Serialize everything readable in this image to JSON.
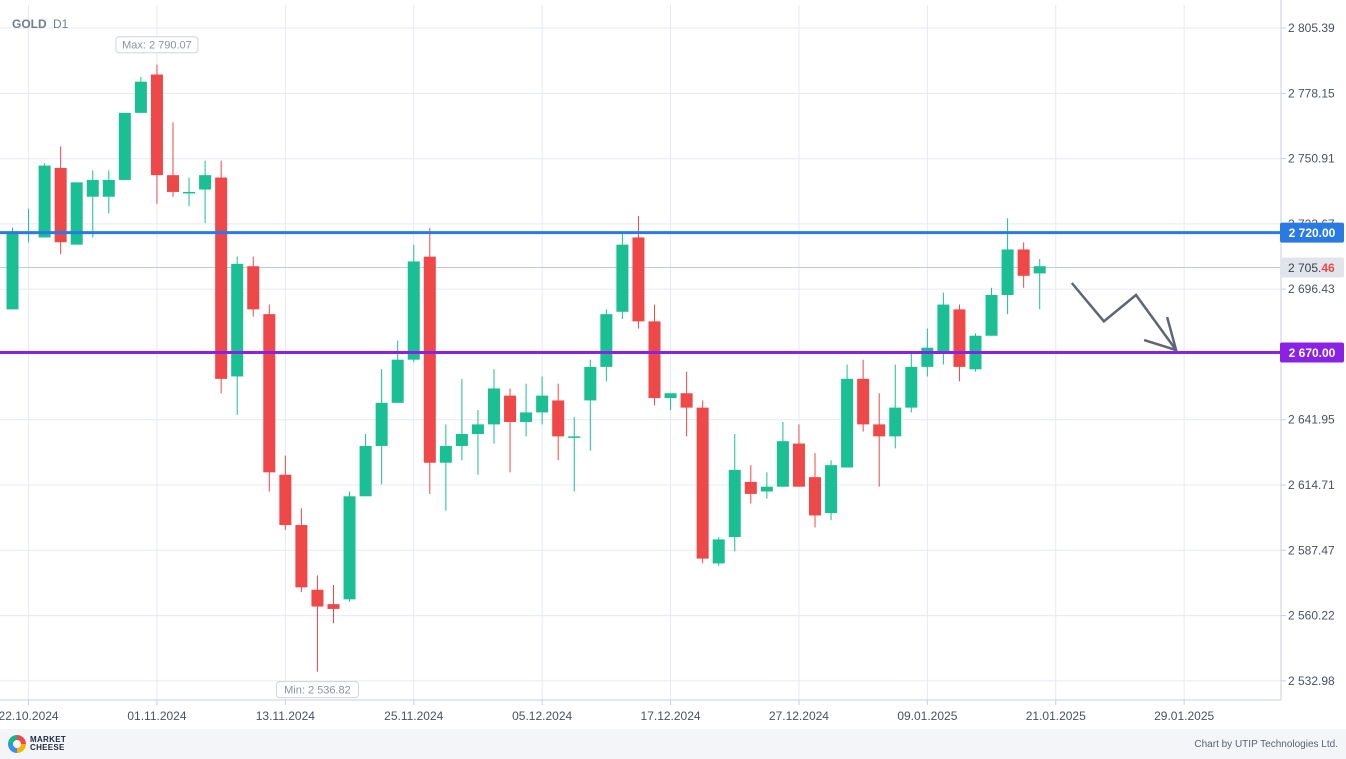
{
  "header": {
    "symbol": "GOLD",
    "timeframe": "D1"
  },
  "footer": {
    "logo_line1": "MARKET",
    "logo_line2": "CHEESE",
    "credit": "Chart by UTIP Technologies Ltd."
  },
  "colors": {
    "bull": "#1bbf94",
    "bear": "#ef4848",
    "resistance": "#2a7ae4",
    "support": "#8a22e6",
    "arrow": "#5d6673",
    "grid": "#e6e9f4"
  },
  "chart_data": {
    "type": "candlestick",
    "symbol": "GOLD",
    "timeframe": "D1",
    "ylim": [
      2525,
      2815
    ],
    "y_ticks": [
      "2 805.39",
      "2 778.15",
      "2 750.91",
      "2 723.67",
      "2 696.43",
      "2 641.95",
      "2 614.71",
      "2 587.47",
      "2 560.22",
      "2 532.98"
    ],
    "x_ticks": [
      {
        "index": 1,
        "label": "22.10.2024"
      },
      {
        "index": 9,
        "label": "01.11.2024"
      },
      {
        "index": 17,
        "label": "13.11.2024"
      },
      {
        "index": 25,
        "label": "25.11.2024"
      },
      {
        "index": 33,
        "label": "05.12.2024"
      },
      {
        "index": 41,
        "label": "17.12.2024"
      },
      {
        "index": 49,
        "label": "27.12.2024"
      },
      {
        "index": 57,
        "label": "09.01.2025"
      },
      {
        "index": 65,
        "label": "21.01.2025"
      },
      {
        "index": 73,
        "label": "29.01.2025"
      }
    ],
    "candles": [
      {
        "o": 2688.0,
        "h": 2722.0,
        "l": 2688.0,
        "c": 2720.0
      },
      {
        "o": 2720.0,
        "h": 2730.0,
        "l": 2716.0,
        "c": 2720.0
      },
      {
        "o": 2718.0,
        "h": 2749.0,
        "l": 2718.0,
        "c": 2748.0
      },
      {
        "o": 2747.0,
        "h": 2756.0,
        "l": 2711.0,
        "c": 2716.0
      },
      {
        "o": 2715.0,
        "h": 2740.0,
        "l": 2715.0,
        "c": 2741.0
      },
      {
        "o": 2735.0,
        "h": 2746.0,
        "l": 2718.0,
        "c": 2742.0
      },
      {
        "o": 2735.0,
        "h": 2746.0,
        "l": 2728.0,
        "c": 2742.0
      },
      {
        "o": 2742.0,
        "h": 2770.0,
        "l": 2742.0,
        "c": 2770.0
      },
      {
        "o": 2770.0,
        "h": 2785.0,
        "l": 2770.0,
        "c": 2783.0
      },
      {
        "o": 2786.0,
        "h": 2790.07,
        "l": 2732.0,
        "c": 2744.0
      },
      {
        "o": 2744.0,
        "h": 2766.0,
        "l": 2735.0,
        "c": 2737.0
      },
      {
        "o": 2737.0,
        "h": 2743.0,
        "l": 2731.0,
        "c": 2737.0
      },
      {
        "o": 2738.0,
        "h": 2750.0,
        "l": 2724.0,
        "c": 2744.0
      },
      {
        "o": 2743.0,
        "h": 2750.0,
        "l": 2653.0,
        "c": 2659.0
      },
      {
        "o": 2660.0,
        "h": 2710.0,
        "l": 2644.0,
        "c": 2707.0
      },
      {
        "o": 2706.0,
        "h": 2710.0,
        "l": 2685.0,
        "c": 2688.0
      },
      {
        "o": 2686.0,
        "h": 2690.0,
        "l": 2612.0,
        "c": 2620.0
      },
      {
        "o": 2619.0,
        "h": 2627.0,
        "l": 2596.0,
        "c": 2598.0
      },
      {
        "o": 2598.0,
        "h": 2605.0,
        "l": 2570.0,
        "c": 2572.0
      },
      {
        "o": 2571.0,
        "h": 2577.0,
        "l": 2536.82,
        "c": 2564.0
      },
      {
        "o": 2565.0,
        "h": 2573.0,
        "l": 2557.0,
        "c": 2563.0
      },
      {
        "o": 2567.0,
        "h": 2612.0,
        "l": 2566.0,
        "c": 2610.0
      },
      {
        "o": 2610.0,
        "h": 2636.0,
        "l": 2610.0,
        "c": 2631.0
      },
      {
        "o": 2631.0,
        "h": 2663.0,
        "l": 2615.0,
        "c": 2649.0
      },
      {
        "o": 2649.0,
        "h": 2675.0,
        "l": 2649.0,
        "c": 2667.0
      },
      {
        "o": 2667.0,
        "h": 2715.0,
        "l": 2666.0,
        "c": 2708.0
      },
      {
        "o": 2710.0,
        "h": 2722.0,
        "l": 2611.0,
        "c": 2624.0
      },
      {
        "o": 2624.0,
        "h": 2640.0,
        "l": 2604.0,
        "c": 2631.0
      },
      {
        "o": 2631.0,
        "h": 2659.0,
        "l": 2625.0,
        "c": 2636.0
      },
      {
        "o": 2636.0,
        "h": 2646.0,
        "l": 2619.0,
        "c": 2640.0
      },
      {
        "o": 2640.0,
        "h": 2663.0,
        "l": 2632.0,
        "c": 2655.0
      },
      {
        "o": 2652.0,
        "h": 2655.0,
        "l": 2620.0,
        "c": 2641.0
      },
      {
        "o": 2641.0,
        "h": 2657.0,
        "l": 2635.0,
        "c": 2645.0
      },
      {
        "o": 2645.0,
        "h": 2660.0,
        "l": 2640.0,
        "c": 2652.0
      },
      {
        "o": 2650.0,
        "h": 2657.0,
        "l": 2625.0,
        "c": 2635.0
      },
      {
        "o": 2635.0,
        "h": 2643.0,
        "l": 2612.0,
        "c": 2635.0
      },
      {
        "o": 2650.0,
        "h": 2667.0,
        "l": 2629.0,
        "c": 2664.0
      },
      {
        "o": 2664.0,
        "h": 2688.0,
        "l": 2658.0,
        "c": 2686.0
      },
      {
        "o": 2687.0,
        "h": 2720.0,
        "l": 2684.0,
        "c": 2715.0
      },
      {
        "o": 2718.0,
        "h": 2727.0,
        "l": 2680.0,
        "c": 2683.0
      },
      {
        "o": 2683.0,
        "h": 2690.0,
        "l": 2648.0,
        "c": 2651.0
      },
      {
        "o": 2651.0,
        "h": 2652.0,
        "l": 2646.0,
        "c": 2653.0
      },
      {
        "o": 2653.0,
        "h": 2662.0,
        "l": 2635.0,
        "c": 2647.0
      },
      {
        "o": 2647.0,
        "h": 2650.0,
        "l": 2582.0,
        "c": 2584.0
      },
      {
        "o": 2582.0,
        "h": 2593.0,
        "l": 2581.0,
        "c": 2592.0
      },
      {
        "o": 2593.0,
        "h": 2636.0,
        "l": 2587.0,
        "c": 2621.0
      },
      {
        "o": 2616.0,
        "h": 2623.0,
        "l": 2607.0,
        "c": 2611.0
      },
      {
        "o": 2612.0,
        "h": 2620.0,
        "l": 2609.0,
        "c": 2614.0
      },
      {
        "o": 2614.0,
        "h": 2641.0,
        "l": 2614.0,
        "c": 2633.0
      },
      {
        "o": 2632.0,
        "h": 2640.0,
        "l": 2614.0,
        "c": 2614.0
      },
      {
        "o": 2618.0,
        "h": 2628.0,
        "l": 2597.0,
        "c": 2602.0
      },
      {
        "o": 2603.0,
        "h": 2625.0,
        "l": 2600.0,
        "c": 2623.0
      },
      {
        "o": 2622.0,
        "h": 2665.0,
        "l": 2622.0,
        "c": 2659.0
      },
      {
        "o": 2659.0,
        "h": 2667.0,
        "l": 2637.0,
        "c": 2640.0
      },
      {
        "o": 2640.0,
        "h": 2653.0,
        "l": 2614.0,
        "c": 2635.0
      },
      {
        "o": 2635.0,
        "h": 2665.0,
        "l": 2630.0,
        "c": 2647.0
      },
      {
        "o": 2647.0,
        "h": 2670.0,
        "l": 2645.0,
        "c": 2664.0
      },
      {
        "o": 2664.0,
        "h": 2680.0,
        "l": 2660.0,
        "c": 2672.0
      },
      {
        "o": 2670.0,
        "h": 2695.0,
        "l": 2665.0,
        "c": 2690.0
      },
      {
        "o": 2688.0,
        "h": 2690.0,
        "l": 2658.0,
        "c": 2664.0
      },
      {
        "o": 2663.0,
        "h": 2678.0,
        "l": 2662.0,
        "c": 2677.0
      },
      {
        "o": 2677.0,
        "h": 2697.0,
        "l": 2677.0,
        "c": 2694.0
      },
      {
        "o": 2694.0,
        "h": 2726.0,
        "l": 2686.0,
        "c": 2713.0
      },
      {
        "o": 2713.0,
        "h": 2716.0,
        "l": 2697.0,
        "c": 2702.0
      },
      {
        "o": 2703.0,
        "h": 2709.0,
        "l": 2688.0,
        "c": 2706.0
      }
    ],
    "levels": [
      {
        "name": "resistance",
        "value": 2720.0,
        "label": "2 720.00"
      },
      {
        "name": "support",
        "value": 2670.0,
        "label": "2 670.00"
      }
    ],
    "current_price": {
      "value": 2705.46,
      "label_main": "2 705.",
      "label_tail": "46"
    },
    "max_label": "Max: 2 790.07",
    "min_label": "Min: 2 536.82",
    "forecast_arrow": [
      {
        "index": 66.0,
        "price": 2699
      },
      {
        "index": 68.0,
        "price": 2683
      },
      {
        "index": 70.0,
        "price": 2694
      },
      {
        "index": 72.5,
        "price": 2671
      }
    ]
  }
}
